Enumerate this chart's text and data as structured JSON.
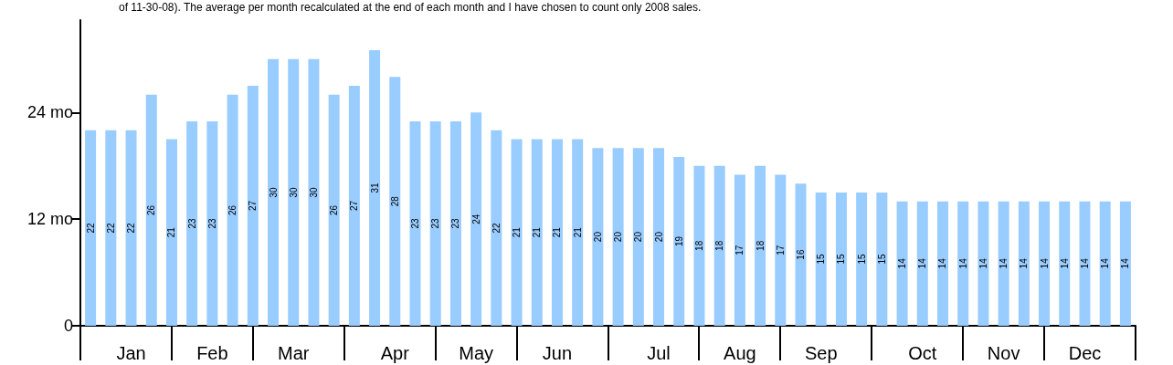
{
  "chart_data": {
    "type": "bar",
    "annotations": [
      "of 11-30-08). The average per month recalculated at the end of each month and I have chosen to count only 2008 sales."
    ],
    "categories": [
      null,
      null,
      "Jan",
      null,
      null,
      null,
      "Feb",
      null,
      null,
      null,
      "Mar",
      null,
      null,
      null,
      null,
      "Apr",
      null,
      null,
      null,
      "May",
      null,
      null,
      null,
      "Jun",
      null,
      null,
      null,
      null,
      "Jul",
      null,
      null,
      null,
      "Aug",
      null,
      null,
      null,
      "Sep",
      null,
      null,
      null,
      null,
      "Oct",
      null,
      null,
      null,
      "Nov",
      null,
      null,
      null,
      "Dec",
      null,
      null
    ],
    "values": [
      22,
      22,
      22,
      26,
      21,
      23,
      23,
      26,
      27,
      30,
      30,
      30,
      26,
      27,
      31,
      28,
      23,
      23,
      23,
      24,
      22,
      21,
      21,
      21,
      21,
      20,
      20,
      20,
      20,
      19,
      18,
      18,
      17,
      18,
      17,
      16,
      15,
      15,
      15,
      15,
      14,
      14,
      14,
      14,
      14,
      14,
      14,
      14,
      14,
      14,
      14,
      14
    ],
    "color": "#99ccff",
    "data_labels": true,
    "ylim": [
      0,
      34.4
    ],
    "yticks": [
      0,
      {
        "value": 12,
        "label": "12 mo"
      },
      {
        "value": 24,
        "label": "24 mo"
      }
    ]
  }
}
